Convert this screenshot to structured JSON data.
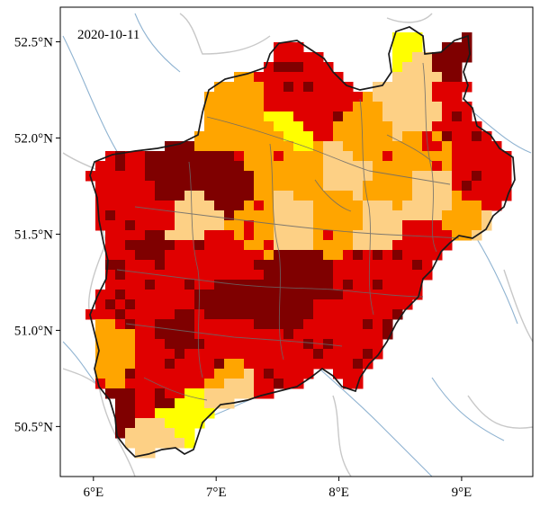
{
  "date_label": "2020-10-11",
  "axes": {
    "x_ticks": [
      {
        "lon": 6,
        "label": "6°E"
      },
      {
        "lon": 7,
        "label": "7°E"
      },
      {
        "lon": 8,
        "label": "8°E"
      },
      {
        "lon": 9,
        "label": "9°E"
      }
    ],
    "y_ticks": [
      {
        "lat": 52.5,
        "label": "52.5°N"
      },
      {
        "lat": 52.0,
        "label": "52.0°N"
      },
      {
        "lat": 51.5,
        "label": "51.5°N"
      },
      {
        "lat": 51.0,
        "label": "51.0°N"
      },
      {
        "lat": 50.5,
        "label": "50.5°N"
      }
    ],
    "lon_range": [
      5.73,
      9.58
    ],
    "lat_range": [
      50.24,
      52.68
    ]
  },
  "colors": {
    "yellow": "#ffff00",
    "light_orange": "#fdd085",
    "orange": "#ffa500",
    "red": "#e00000",
    "dark_red": "#7f0000",
    "state_border": "#1a1a1a",
    "district_border": "#6a6a6a",
    "country_border": "#c8c8c8",
    "river": "#8fb3d1"
  }
}
